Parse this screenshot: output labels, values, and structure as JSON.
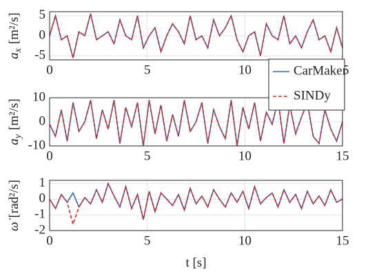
{
  "chart_data": [
    {
      "type": "line",
      "ylabel": {
        "symbol": "a",
        "subscript": "x",
        "unit": "[m²/s]"
      },
      "x": [
        0,
        0.3,
        0.6,
        0.9,
        1.2,
        1.5,
        1.8,
        2.1,
        2.4,
        2.7,
        3,
        3.3,
        3.6,
        3.9,
        4.2,
        4.5,
        4.8,
        5.1,
        5.4,
        5.7,
        6,
        6.3,
        6.6,
        6.9,
        7.2,
        7.5,
        7.8,
        8.1,
        8.4,
        8.7,
        9,
        9.3,
        9.6,
        9.9,
        10.2,
        10.5,
        10.8,
        11.1,
        11.4,
        11.7,
        12,
        12.3,
        12.6,
        12.9,
        13.2,
        13.5,
        13.8,
        14.1,
        14.4,
        14.7,
        15
      ],
      "xlim": [
        0,
        15
      ],
      "xticks": [
        0,
        5,
        10,
        15
      ],
      "ylim": [
        -6,
        6
      ],
      "yticks": [
        -5,
        0,
        5
      ],
      "grid": true,
      "legend": "right",
      "series": [
        {
          "name": "CarMaker",
          "color": "#3566b8",
          "dash": false,
          "values": [
            0,
            5,
            -1,
            0,
            -5.5,
            1,
            0,
            5.5,
            -1,
            0,
            1,
            -2,
            4,
            0,
            -1,
            5,
            -3,
            0,
            2,
            -4,
            0,
            3,
            1,
            -2,
            5,
            -1,
            0,
            -3,
            4,
            0,
            2,
            5,
            -1,
            -4,
            0,
            1,
            -5,
            3,
            0,
            -1,
            5,
            -2,
            0,
            -3,
            1,
            4,
            -1,
            0,
            -4,
            2,
            -3
          ]
        },
        {
          "name": "SINDy",
          "color": "#d62728",
          "dash": true,
          "values": [
            0,
            5,
            -1,
            0,
            -5.5,
            1,
            0,
            5.5,
            -1,
            0,
            1,
            -2,
            4,
            0,
            -1,
            5,
            -3,
            0,
            2,
            -4,
            0,
            3,
            1,
            -2,
            5,
            -1,
            0,
            -3,
            4,
            0,
            2,
            5,
            -1,
            -4,
            0,
            1,
            -5,
            3,
            0,
            -1,
            5,
            -2,
            0,
            -3,
            1,
            4,
            -1,
            0,
            -4,
            2,
            -3
          ]
        }
      ]
    },
    {
      "type": "line",
      "ylabel": {
        "symbol": "a",
        "subscript": "y",
        "unit": "[m²/s]"
      },
      "x": [
        0,
        0.3,
        0.6,
        0.9,
        1.2,
        1.5,
        1.8,
        2.1,
        2.4,
        2.7,
        3,
        3.3,
        3.6,
        3.9,
        4.2,
        4.5,
        4.8,
        5.1,
        5.4,
        5.7,
        6,
        6.3,
        6.6,
        6.9,
        7.2,
        7.5,
        7.8,
        8.1,
        8.4,
        8.7,
        9,
        9.3,
        9.6,
        9.9,
        10.2,
        10.5,
        10.8,
        11.1,
        11.4,
        11.7,
        12,
        12.3,
        12.6,
        12.9,
        13.2,
        13.5,
        13.8,
        14.1,
        14.4,
        14.7,
        15
      ],
      "xlim": [
        0,
        15
      ],
      "xticks": [
        0,
        5,
        10,
        15
      ],
      "ylim": [
        -10,
        10
      ],
      "yticks": [
        -10,
        0,
        10
      ],
      "grid": true,
      "series": [
        {
          "name": "CarMaker",
          "color": "#3566b8",
          "dash": false,
          "values": [
            -1,
            -6,
            5,
            -8,
            8,
            -4,
            0,
            9,
            -7,
            5,
            -3,
            9,
            -9,
            6,
            -2,
            8,
            -10,
            9,
            -5,
            7,
            -8,
            3,
            -6,
            9,
            -4,
            0,
            8,
            -9,
            5,
            -2,
            -7,
            9,
            -10,
            6,
            -3,
            8,
            -8,
            4,
            -1,
            9,
            -9,
            7,
            -5,
            2,
            8,
            -6,
            -9,
            5,
            -3,
            -8,
            0
          ]
        },
        {
          "name": "SINDy",
          "color": "#d62728",
          "dash": true,
          "values": [
            -1,
            -6,
            5,
            -8,
            8,
            -4,
            0,
            9,
            -7,
            5,
            -3,
            9,
            -9,
            6,
            -2,
            8,
            -10,
            9,
            -5,
            7,
            -8,
            3,
            -6,
            9,
            -4,
            0,
            8,
            -9,
            5,
            -2,
            -7,
            9,
            -10,
            6,
            -3,
            8,
            -8,
            4,
            -1,
            9,
            -9,
            7,
            -5,
            2,
            8,
            -6,
            -9,
            5,
            -3,
            -8,
            0
          ]
        }
      ]
    },
    {
      "type": "line",
      "ylabel": {
        "symbol": "ω̇",
        "subscript": "",
        "unit": "[rad²/s]"
      },
      "xlabel": "t [s]",
      "x": [
        0,
        0.3,
        0.6,
        0.9,
        1.2,
        1.5,
        1.8,
        2.1,
        2.4,
        2.7,
        3,
        3.3,
        3.6,
        3.9,
        4.2,
        4.5,
        4.8,
        5.1,
        5.4,
        5.7,
        6,
        6.3,
        6.6,
        6.9,
        7.2,
        7.5,
        7.8,
        8.1,
        8.4,
        8.7,
        9,
        9.3,
        9.6,
        9.9,
        10.2,
        10.5,
        10.8,
        11.1,
        11.4,
        11.7,
        12,
        12.3,
        12.6,
        12.9,
        13.2,
        13.5,
        13.8,
        14.1,
        14.4,
        14.7,
        15
      ],
      "xlim": [
        0,
        15
      ],
      "xticks": [
        0,
        5,
        10,
        15
      ],
      "ylim": [
        -2,
        1.2
      ],
      "yticks": [
        -2,
        -1,
        0,
        1
      ],
      "grid": true,
      "series": [
        {
          "name": "CarMaker",
          "color": "#3566b8",
          "dash": false,
          "values": [
            0,
            -0.6,
            0.3,
            -0.2,
            0.4,
            -0.5,
            0.1,
            -0.3,
            0.6,
            -0.2,
            1,
            0.2,
            -0.5,
            0.8,
            -0.6,
            0.3,
            -1.3,
            0.5,
            -0.8,
            0.4,
            0,
            -0.4,
            0.3,
            -0.7,
            0.7,
            -0.3,
            0.2,
            -0.5,
            0.6,
            0,
            -0.5,
            0.4,
            -0.2,
            0.5,
            -0.6,
            0.8,
            -0.3,
            0.1,
            0.4,
            -0.5,
            0.6,
            -0.2,
            0.3,
            -0.6,
            0.5,
            -0.3,
            0.2,
            -0.4,
            0.6,
            -0.2,
            0
          ]
        },
        {
          "name": "SINDy",
          "color": "#d62728",
          "dash": true,
          "values": [
            0,
            -0.6,
            0.3,
            -0.2,
            -1.6,
            -0.5,
            0.1,
            -0.3,
            0.6,
            -0.2,
            1,
            0.2,
            -0.5,
            0.8,
            -0.6,
            0.3,
            -1.3,
            0.5,
            -0.8,
            0.4,
            0,
            -0.4,
            0.3,
            -0.7,
            0.7,
            -0.3,
            0.2,
            -0.5,
            0.6,
            0,
            -0.5,
            0.4,
            -0.2,
            0.5,
            -0.6,
            0.8,
            -0.3,
            0.1,
            0.4,
            -0.5,
            0.6,
            -0.2,
            0.3,
            -0.6,
            0.5,
            -0.3,
            0.2,
            -0.4,
            0.6,
            -0.2,
            0
          ]
        }
      ]
    }
  ]
}
